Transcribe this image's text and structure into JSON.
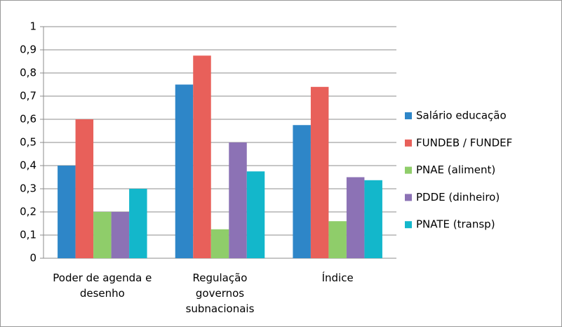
{
  "chart_data": {
    "type": "bar",
    "categories": [
      "Poder de agenda e desenho",
      "Regulação governos subnacionais",
      "Índice"
    ],
    "series": [
      {
        "name": "Salário educação",
        "color": "#2e86c8",
        "values": [
          0.4,
          0.75,
          0.575
        ]
      },
      {
        "name": "FUNDEB / FUNDEF",
        "color": "#e8605a",
        "values": [
          0.6,
          0.875,
          0.74
        ]
      },
      {
        "name": "PNAE (aliment)",
        "color": "#8fcd6a",
        "values": [
          0.2,
          0.125,
          0.16
        ]
      },
      {
        "name": "PDDE (dinheiro)",
        "color": "#8c72b5",
        "values": [
          0.2,
          0.5,
          0.35
        ]
      },
      {
        "name": "PNATE (transp)",
        "color": "#13b7cb",
        "values": [
          0.3,
          0.375,
          0.337
        ]
      }
    ],
    "ylim": [
      0,
      1
    ],
    "yticks": [
      0,
      {
        "value": 0.1,
        "label": "0,1"
      },
      {
        "value": 0.2,
        "label": "0,2"
      },
      {
        "value": 0.3,
        "label": "0,3"
      },
      {
        "value": 0.4,
        "label": "0,4"
      },
      {
        "value": 0.5,
        "label": "0,5"
      },
      {
        "value": 0.6,
        "label": "0,6"
      },
      {
        "value": 0.7,
        "label": "0,7"
      },
      {
        "value": 0.8,
        "label": "0,8"
      },
      {
        "value": 0.9,
        "label": "0,9"
      },
      1
    ],
    "grid": true,
    "legend": "right"
  }
}
